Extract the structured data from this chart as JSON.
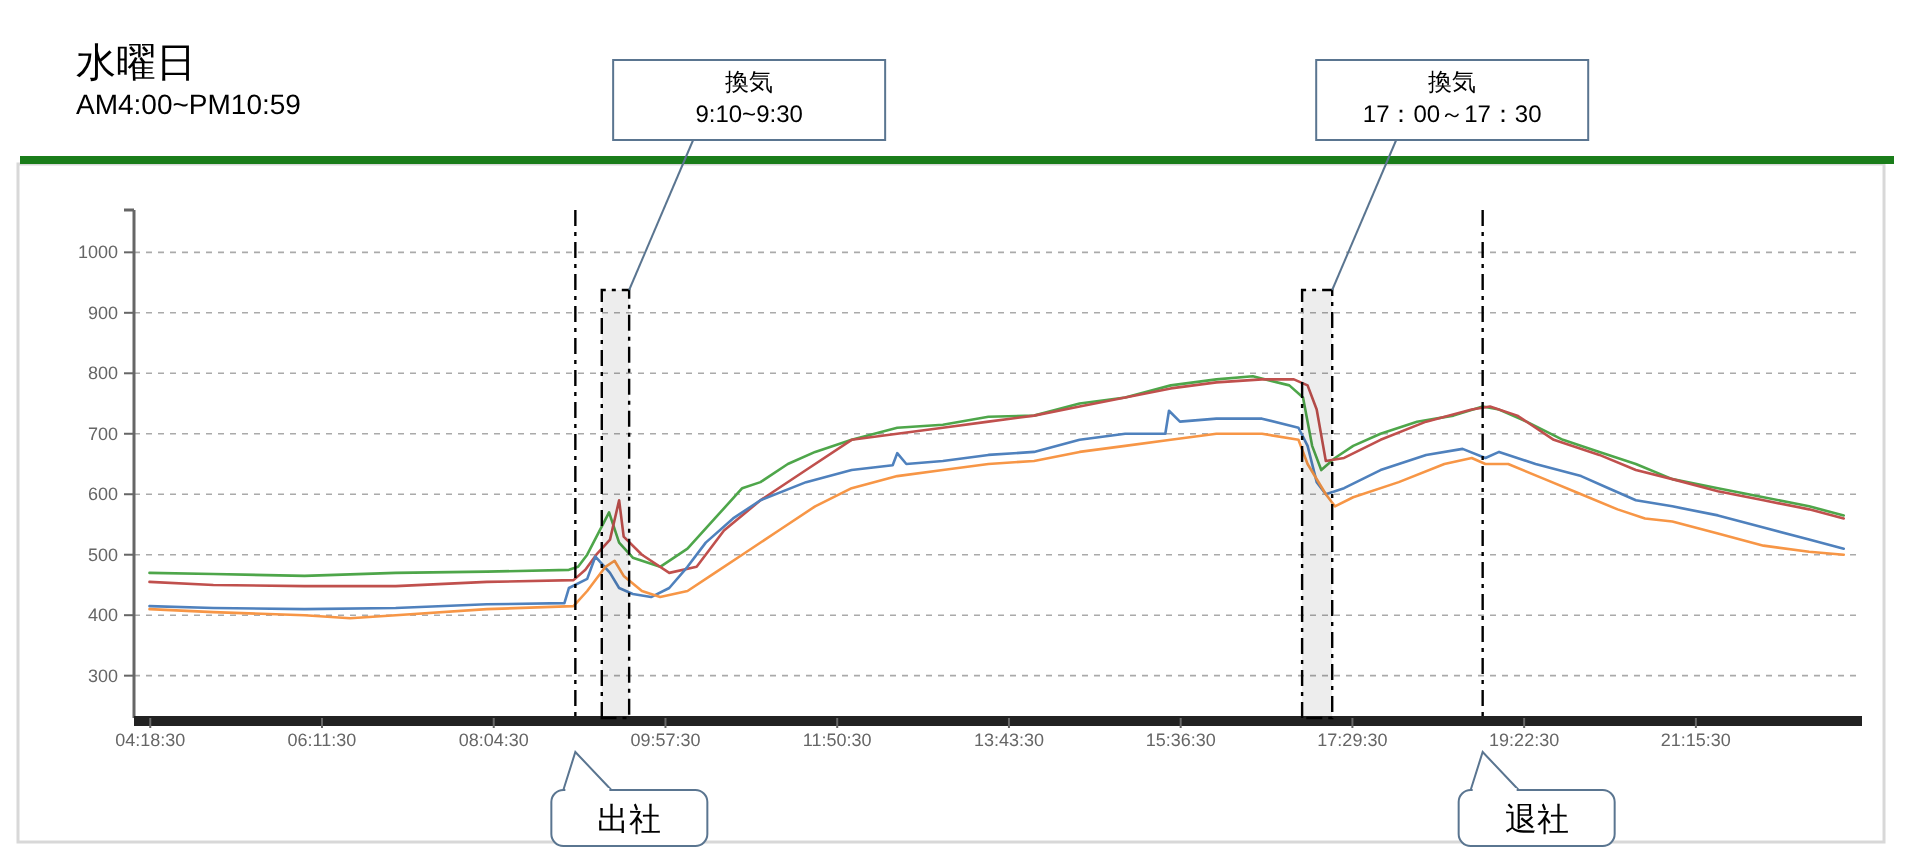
{
  "chart_data": {
    "type": "line",
    "title": "水曜日",
    "subtitle": "AM4:00~PM10:59",
    "xlim": [
      4.13,
      23.08
    ],
    "ylim": [
      230,
      1070
    ],
    "xticks": [
      {
        "value": 4.308333,
        "label": "04:18:30"
      },
      {
        "value": 6.191667,
        "label": "06:11:30"
      },
      {
        "value": 8.075,
        "label": "08:04:30"
      },
      {
        "value": 9.958333,
        "label": "09:57:30"
      },
      {
        "value": 11.841667,
        "label": "11:50:30"
      },
      {
        "value": 13.725,
        "label": "13:43:30"
      },
      {
        "value": 15.608333,
        "label": "15:36:30"
      },
      {
        "value": 17.491667,
        "label": "17:29:30"
      },
      {
        "value": 19.375,
        "label": "19:22:30"
      },
      {
        "value": 21.258333,
        "label": "21:15:30"
      }
    ],
    "yticks": [
      300,
      400,
      500,
      600,
      700,
      800,
      900,
      1000
    ],
    "grid": "y",
    "line_style": "solid",
    "series": [
      {
        "color": "#4ea64a",
        "x": [
          4.3,
          5,
          6,
          7,
          8,
          8.9,
          9.0,
          9.1,
          9.34,
          9.45,
          9.6,
          9.9,
          10.2,
          10.5,
          10.8,
          11.0,
          11.3,
          11.6,
          12.0,
          12.5,
          13.0,
          13.5,
          14.0,
          14.5,
          15.0,
          15.5,
          16.0,
          16.4,
          16.8,
          16.95,
          17.05,
          17.15,
          17.3,
          17.5,
          17.8,
          18.2,
          18.6,
          18.92,
          19.1,
          19.4,
          19.8,
          20.2,
          20.6,
          21.0,
          21.5,
          22.0,
          22.5,
          22.88
        ],
        "values": [
          470,
          468,
          465,
          470,
          472,
          475,
          480,
          500,
          570,
          520,
          495,
          480,
          510,
          560,
          610,
          620,
          650,
          670,
          690,
          710,
          715,
          728,
          730,
          750,
          760,
          780,
          790,
          795,
          780,
          760,
          680,
          640,
          660,
          680,
          700,
          720,
          730,
          745,
          740,
          720,
          690,
          670,
          650,
          625,
          610,
          595,
          580,
          565
        ]
      },
      {
        "color": "#c0504d",
        "x": [
          4.3,
          5,
          6,
          7,
          8,
          8.95,
          9.08,
          9.2,
          9.35,
          9.45,
          9.5,
          9.7,
          10.0,
          10.3,
          10.6,
          11.0,
          11.5,
          12.0,
          12.5,
          13.0,
          13.5,
          14.0,
          14.5,
          15.0,
          15.5,
          16.0,
          16.5,
          16.85,
          17.0,
          17.1,
          17.2,
          17.4,
          17.8,
          18.3,
          18.8,
          19.0,
          19.3,
          19.7,
          20.2,
          20.6,
          21.0,
          21.5,
          22.0,
          22.5,
          22.88
        ],
        "values": [
          455,
          450,
          448,
          448,
          455,
          458,
          475,
          500,
          525,
          590,
          530,
          500,
          470,
          480,
          540,
          590,
          640,
          690,
          700,
          710,
          720,
          730,
          745,
          760,
          775,
          785,
          790,
          790,
          780,
          740,
          655,
          660,
          690,
          720,
          740,
          745,
          730,
          690,
          665,
          640,
          625,
          605,
          590,
          575,
          560
        ]
      },
      {
        "color": "#4f81bd",
        "x": [
          4.3,
          5,
          6,
          7,
          8,
          8.85,
          8.9,
          9.1,
          9.19,
          9.35,
          9.45,
          9.6,
          9.8,
          10.0,
          10.2,
          10.4,
          10.7,
          11.0,
          11.5,
          12.0,
          12.45,
          12.5,
          12.6,
          13.0,
          13.5,
          14.0,
          14.5,
          15.0,
          15.44,
          15.48,
          15.6,
          16.0,
          16.5,
          16.9,
          17.0,
          17.1,
          17.2,
          17.4,
          17.8,
          18.3,
          18.7,
          18.95,
          19.1,
          19.5,
          20.0,
          20.3,
          20.6,
          21.0,
          21.5,
          22.0,
          22.5,
          22.88
        ],
        "values": [
          415,
          412,
          410,
          412,
          418,
          420,
          445,
          460,
          497,
          470,
          445,
          435,
          430,
          445,
          480,
          520,
          560,
          590,
          620,
          640,
          648,
          668,
          650,
          655,
          665,
          670,
          690,
          700,
          700,
          738,
          720,
          725,
          725,
          710,
          680,
          620,
          600,
          610,
          640,
          665,
          675,
          660,
          670,
          650,
          630,
          610,
          590,
          580,
          565,
          545,
          525,
          510
        ]
      },
      {
        "color": "#f79646",
        "x": [
          4.3,
          5,
          6,
          6.5,
          7,
          8,
          8.95,
          9.1,
          9.3,
          9.4,
          9.5,
          9.7,
          9.9,
          10.2,
          10.5,
          10.8,
          11.2,
          11.6,
          12.0,
          12.5,
          13.0,
          13.5,
          14.0,
          14.5,
          15.0,
          15.5,
          16.0,
          16.5,
          16.9,
          17.0,
          17.2,
          17.3,
          17.5,
          18.0,
          18.5,
          18.8,
          18.95,
          19.2,
          19.6,
          20.0,
          20.4,
          20.7,
          21.0,
          21.5,
          22.0,
          22.5,
          22.88
        ],
        "values": [
          410,
          405,
          400,
          395,
          400,
          410,
          415,
          440,
          480,
          490,
          465,
          440,
          430,
          440,
          470,
          500,
          540,
          580,
          610,
          630,
          640,
          650,
          655,
          670,
          680,
          690,
          700,
          700,
          690,
          650,
          600,
          580,
          595,
          620,
          650,
          660,
          650,
          650,
          625,
          600,
          575,
          560,
          555,
          535,
          515,
          505,
          500
        ]
      }
    ],
    "ref_lines": [
      {
        "axis": "x",
        "value": 8.97,
        "label": "出社",
        "color": "#000000",
        "line_style": "dashdot"
      },
      {
        "axis": "x",
        "value": 18.92,
        "label": "退社",
        "color": "#000000",
        "line_style": "dashdot"
      }
    ],
    "bands": [
      {
        "axis": "x",
        "from": 9.26,
        "to": 9.56,
        "label": "換気\n9:10~9:30",
        "color": "#000000"
      },
      {
        "axis": "x",
        "from": 16.94,
        "to": 17.27,
        "label": "換気\n17：00～17：30",
        "color": "#000000"
      }
    ]
  }
}
